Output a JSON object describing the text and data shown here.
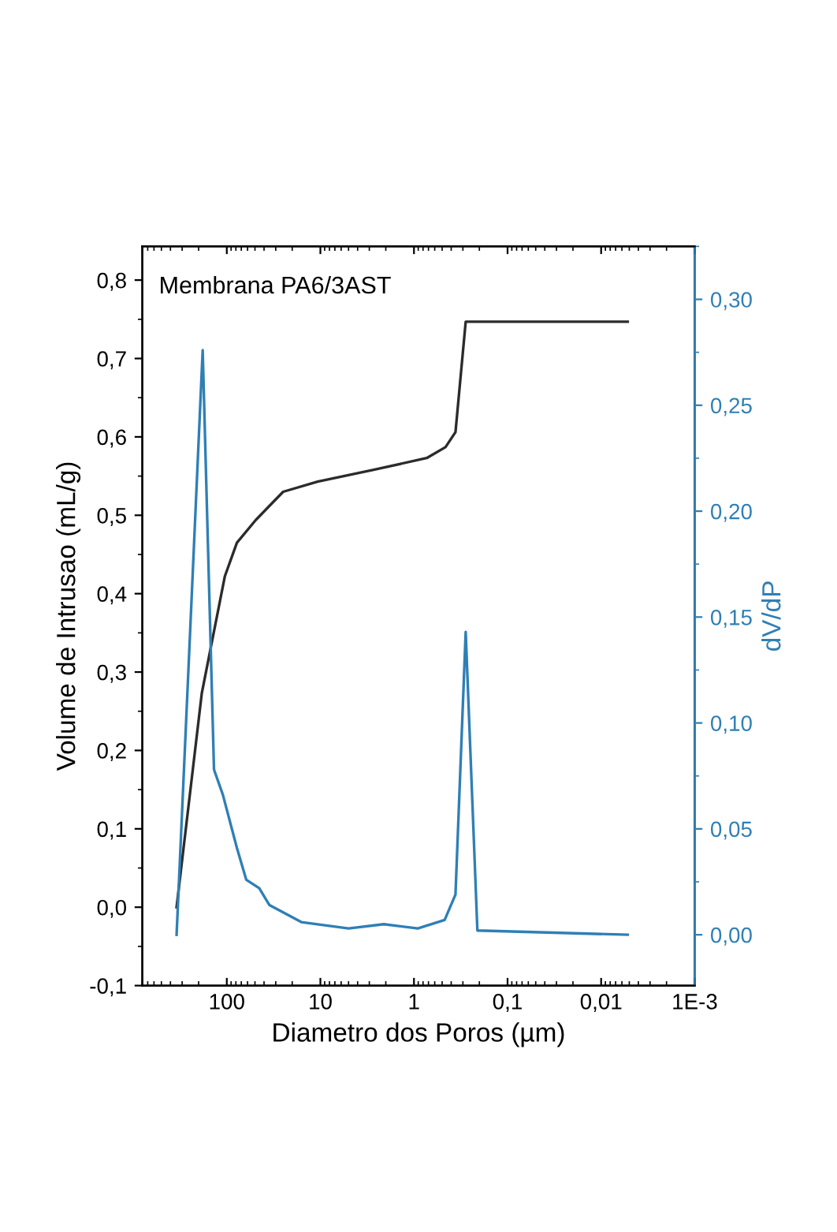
{
  "chart_data": {
    "type": "line",
    "xlabel": "Diametro dos Poros (µm)",
    "ylabel": "Volume de Intrusao (mL/g)",
    "y2label": "dV/dP",
    "annotations": [
      "Membrana PA6/3AST"
    ],
    "log": "x",
    "xlim": [
      800,
      0.001
    ],
    "xticks": [
      {
        "value": 0.001,
        "label": "1E-3"
      },
      {
        "value": 0.01,
        "label": "0,01"
      },
      {
        "value": 0.1,
        "label": "0,1"
      },
      1,
      10,
      100
    ],
    "ylim": [
      -0.1,
      0.843
    ],
    "yticks": [
      {
        "value": -0.1,
        "label": "-0,1"
      },
      {
        "value": 0.0,
        "label": "0,0"
      },
      {
        "value": 0.1,
        "label": "0,1"
      },
      {
        "value": 0.2,
        "label": "0,2"
      },
      {
        "value": 0.3,
        "label": "0,3"
      },
      {
        "value": 0.4,
        "label": "0,4"
      },
      {
        "value": 0.5,
        "label": "0,5"
      },
      {
        "value": 0.6,
        "label": "0,6"
      },
      {
        "value": 0.7,
        "label": "0,7"
      },
      {
        "value": 0.8,
        "label": "0,8"
      }
    ],
    "y2lim": [
      -0.024,
      0.325
    ],
    "y2ticks": [
      {
        "value": 0.0,
        "label": "0,00"
      },
      {
        "value": 0.05,
        "label": "0,05"
      },
      {
        "value": 0.1,
        "label": "0,10"
      },
      {
        "value": 0.15,
        "label": "0,15"
      },
      {
        "value": 0.2,
        "label": "0,20"
      },
      {
        "value": 0.25,
        "label": "0,25"
      },
      {
        "value": 0.3,
        "label": "0,30"
      }
    ],
    "grid": false,
    "legend": false,
    "marker": "none",
    "line_style": "solid",
    "series": [
      {
        "color": "#2b2b2b",
        "x": [
          344,
          185,
          105,
          78,
          49,
          25,
          10.7,
          2.7,
          0.73,
          0.46,
          0.36,
          0.28,
          0.0052
        ],
        "values": [
          0.0,
          0.273,
          0.422,
          0.465,
          0.494,
          0.53,
          0.543,
          0.558,
          0.573,
          0.587,
          0.606,
          0.747,
          0.747
        ]
      },
      {
        "color": "#2f7fb5",
        "axis": "y2",
        "x": [
          344,
          181,
          137,
          110,
          78,
          62,
          45,
          35,
          16,
          5,
          2.1,
          0.91,
          0.47,
          0.36,
          0.28,
          0.21,
          0.0052
        ],
        "values": [
          0.0,
          0.276,
          0.078,
          0.066,
          0.041,
          0.026,
          0.022,
          0.014,
          0.006,
          0.003,
          0.005,
          0.003,
          0.007,
          0.019,
          0.143,
          0.002,
          0.0
        ]
      }
    ]
  }
}
